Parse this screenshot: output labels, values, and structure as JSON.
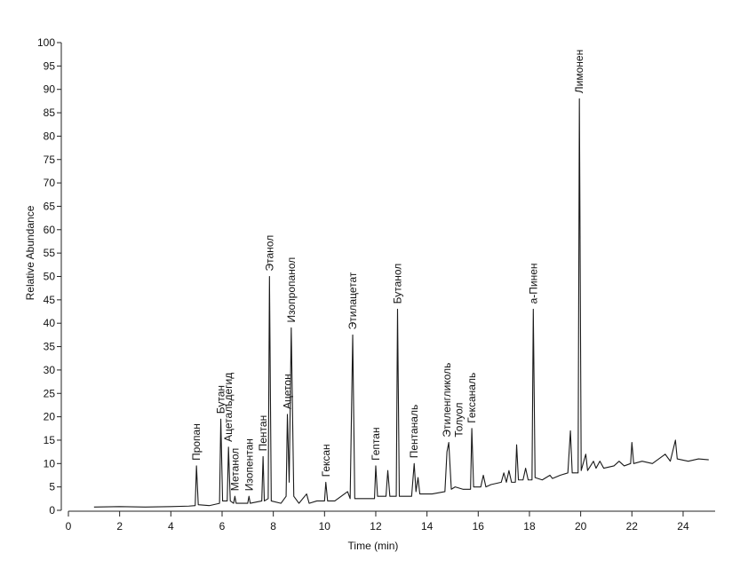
{
  "chart_data": {
    "type": "line",
    "xlabel": "Time (min)",
    "ylabel": "Relative Abundance",
    "xlim": [
      0,
      25.25
    ],
    "ylim": [
      0,
      100
    ],
    "xticks": [
      0,
      2,
      4,
      6,
      8,
      10,
      12,
      14,
      16,
      18,
      20,
      22,
      24
    ],
    "yticks": [
      0,
      5,
      10,
      15,
      20,
      25,
      30,
      35,
      40,
      45,
      50,
      55,
      60,
      65,
      70,
      75,
      80,
      85,
      90,
      95,
      100
    ],
    "color": "#1a1a1a",
    "x": [
      1.0,
      2,
      3,
      4,
      4.7,
      4.95,
      5.0,
      5.07,
      5.5,
      5.9,
      5.95,
      6.02,
      6.2,
      6.25,
      6.32,
      6.45,
      6.5,
      6.55,
      7.0,
      7.05,
      7.1,
      7.55,
      7.6,
      7.65,
      7.8,
      7.85,
      7.92,
      8.3,
      8.5,
      8.55,
      8.62,
      8.7,
      8.8,
      9.0,
      9.3,
      9.4,
      9.7,
      10.0,
      10.05,
      10.12,
      10.4,
      10.9,
      11.0,
      11.1,
      11.18,
      11.6,
      11.95,
      12.0,
      12.07,
      12.4,
      12.47,
      12.55,
      12.8,
      12.85,
      12.92,
      13.4,
      13.5,
      13.57,
      13.65,
      13.72,
      14.2,
      14.7,
      14.78,
      14.85,
      14.95,
      15.1,
      15.4,
      15.7,
      15.75,
      15.82,
      16.1,
      16.2,
      16.3,
      16.5,
      16.9,
      17.0,
      17.1,
      17.2,
      17.3,
      17.45,
      17.5,
      17.57,
      17.75,
      17.85,
      17.95,
      18.1,
      18.15,
      18.22,
      18.5,
      18.8,
      18.9,
      19.2,
      19.5,
      19.6,
      19.67,
      19.9,
      19.95,
      20.02,
      20.2,
      20.27,
      20.5,
      20.6,
      20.75,
      20.9,
      21.3,
      21.5,
      21.7,
      21.95,
      22.0,
      22.07,
      22.4,
      22.8,
      23.3,
      23.5,
      23.7,
      23.77,
      24.2,
      24.6,
      25.0
    ],
    "y": [
      0.7,
      0.8,
      0.7,
      0.8,
      0.9,
      1.0,
      9.5,
      1.2,
      1.0,
      1.5,
      19.5,
      2,
      2,
      13.5,
      2,
      1.5,
      3,
      1.5,
      1.5,
      3,
      1.5,
      2,
      11.5,
      2,
      2.5,
      50,
      2,
      1.5,
      3,
      20.5,
      6,
      39,
      3,
      1.5,
      3.5,
      1.5,
      2,
      2,
      6,
      2,
      2,
      4,
      2.5,
      37.5,
      2.5,
      2.5,
      2.5,
      9.5,
      3,
      3,
      8.5,
      3,
      3,
      43,
      3,
      3,
      10,
      4,
      7,
      3.5,
      3.5,
      4,
      12.5,
      14.5,
      4.5,
      5,
      4.5,
      4.5,
      17.5,
      5,
      5,
      7.5,
      5,
      5.5,
      6,
      8,
      6,
      8.5,
      6,
      6,
      14,
      6.5,
      6.5,
      9,
      6.5,
      6.5,
      43,
      7,
      6.5,
      7.5,
      6.8,
      7.5,
      8,
      17,
      8,
      8,
      88,
      8.5,
      12,
      8.5,
      10.5,
      9,
      10.5,
      9,
      9.5,
      10.5,
      9.5,
      10,
      14.5,
      10,
      10.5,
      10,
      12,
      10.5,
      15,
      11,
      10.5,
      11,
      10.8
    ],
    "annotations": [
      {
        "text": "Пропан",
        "x": 5.0,
        "y": 9.5
      },
      {
        "text": "Бутан",
        "x": 5.95,
        "y": 19.5
      },
      {
        "text": "Ацетальдегид",
        "x": 6.25,
        "y": 13.5
      },
      {
        "text": "Метанол",
        "x": 6.5,
        "y": 3
      },
      {
        "text": "Изопентан",
        "x": 7.05,
        "y": 3
      },
      {
        "text": "Пентан",
        "x": 7.6,
        "y": 11.5
      },
      {
        "text": "Этанол",
        "x": 7.85,
        "y": 50
      },
      {
        "text": "Ацетон",
        "x": 8.55,
        "y": 20.5
      },
      {
        "text": "Изопропанол",
        "x": 8.7,
        "y": 39
      },
      {
        "text": "Гексан",
        "x": 10.05,
        "y": 6
      },
      {
        "text": "Этилацетат",
        "x": 11.1,
        "y": 37.5
      },
      {
        "text": "Гептан",
        "x": 12.0,
        "y": 9.5
      },
      {
        "text": "Бутанол",
        "x": 12.85,
        "y": 43
      },
      {
        "text": "Пентаналь",
        "x": 13.5,
        "y": 10
      },
      {
        "text": "Этиленгликоль",
        "x": 14.78,
        "y": 14.5
      },
      {
        "text": "Толуол",
        "x": 15.25,
        "y": 14.5
      },
      {
        "text": "Гексаналь",
        "x": 15.75,
        "y": 17.5
      },
      {
        "text": "а-Пинен",
        "x": 18.15,
        "y": 43
      },
      {
        "text": "Лимонен",
        "x": 19.95,
        "y": 88
      }
    ]
  }
}
